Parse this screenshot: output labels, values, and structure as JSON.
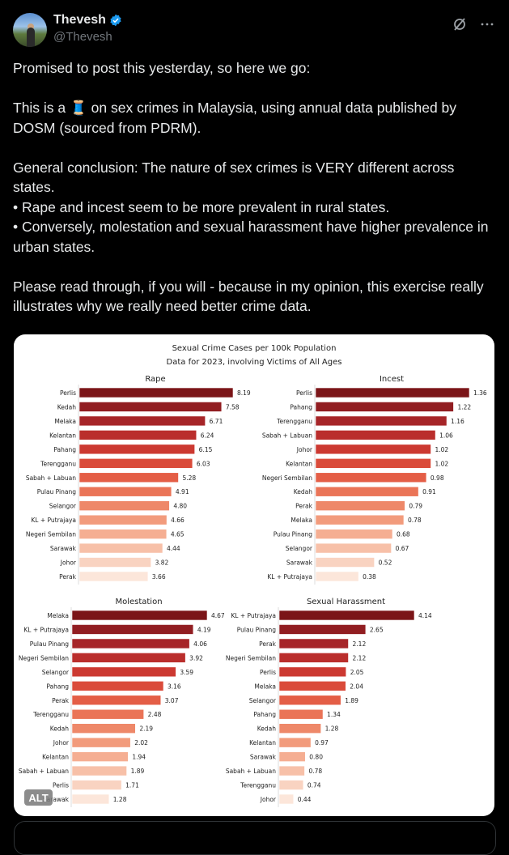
{
  "author": {
    "name": "Thevesh",
    "handle": "@Thevesh",
    "verified": true
  },
  "icons": {
    "verified": "verified-badge-icon",
    "grok": "grok-icon",
    "more": "more-icon"
  },
  "tweet": {
    "paragraphs": [
      "Promised to post this yesterday, so here we go:",
      "This is a 🧵 on sex crimes in Malaysia, using annual data published by DOSM (sourced from PDRM).",
      "General conclusion: The nature of sex crimes is VERY different across states.\n• Rape and incest seem to be more prevalent in rural states.\n• Conversely, molestation and sexual harassment have higher prevalence in urban states.",
      "Please read through, if you will - because in my opinion, this exercise really illustrates why we really need better crime data."
    ]
  },
  "alt_label": "ALT",
  "colors": {
    "palette": [
      "#7b1518",
      "#a32428",
      "#c8342e",
      "#e2553f",
      "#ec7d5e",
      "#f3a182",
      "#f7c3ab",
      "#fce6da"
    ],
    "accent": "#1d9bf0"
  },
  "chart_data": {
    "type": "bar",
    "orientation": "horizontal",
    "title": "Sexual Crime Cases per 100k Population",
    "subtitle": "Data for 2023, involving Victims of All Ages",
    "panels": [
      {
        "title": "Rape",
        "categories": [
          "Perlis",
          "Kedah",
          "Melaka",
          "Kelantan",
          "Pahang",
          "Terengganu",
          "Sabah + Labuan",
          "Pulau Pinang",
          "Selangor",
          "KL + Putrajaya",
          "Negeri Sembilan",
          "Sarawak",
          "Johor",
          "Perak"
        ],
        "values": [
          8.19,
          7.58,
          6.71,
          6.24,
          6.15,
          6.03,
          5.28,
          4.91,
          4.8,
          4.66,
          4.65,
          4.44,
          3.82,
          3.66
        ],
        "labels": [
          "8.19",
          "7.58",
          "6.71",
          "6.24",
          "6.15",
          "6.03",
          "5.28",
          "4.91",
          "4.80",
          "4.66",
          "4.65",
          "4.44",
          "3.82",
          "3.66"
        ]
      },
      {
        "title": "Incest",
        "categories": [
          "Perlis",
          "Pahang",
          "Terengganu",
          "Sabah + Labuan",
          "Johor",
          "Kelantan",
          "Negeri Sembilan",
          "Kedah",
          "Perak",
          "Melaka",
          "Pulau Pinang",
          "Selangor",
          "Sarawak",
          "KL + Putrajaya"
        ],
        "values": [
          1.36,
          1.22,
          1.16,
          1.06,
          1.02,
          1.02,
          0.98,
          0.91,
          0.79,
          0.78,
          0.68,
          0.67,
          0.52,
          0.38
        ],
        "labels": [
          "1.36",
          "1.22",
          "1.16",
          "1.06",
          "1.02",
          "1.02",
          "0.98",
          "0.91",
          "0.79",
          "0.78",
          "0.68",
          "0.67",
          "0.52",
          "0.38"
        ]
      },
      {
        "title": "Molestation",
        "categories": [
          "Melaka",
          "KL + Putrajaya",
          "Pulau Pinang",
          "Negeri Sembilan",
          "Selangor",
          "Pahang",
          "Perak",
          "Terengganu",
          "Kedah",
          "Johor",
          "Kelantan",
          "Sabah + Labuan",
          "Perlis",
          "Sarawak"
        ],
        "values": [
          4.67,
          4.19,
          4.06,
          3.92,
          3.59,
          3.16,
          3.07,
          2.48,
          2.19,
          2.02,
          1.94,
          1.89,
          1.71,
          1.28
        ],
        "labels": [
          "4.67",
          "4.19",
          "4.06",
          "3.92",
          "3.59",
          "3.16",
          "3.07",
          "2.48",
          "2.19",
          "2.02",
          "1.94",
          "1.89",
          "1.71",
          "1.28"
        ]
      },
      {
        "title": "Sexual Harassment",
        "categories": [
          "KL + Putrajaya",
          "Pulau Pinang",
          "Perak",
          "Negeri Sembilan",
          "Perlis",
          "Melaka",
          "Selangor",
          "Pahang",
          "Kedah",
          "Kelantan",
          "Sarawak",
          "Sabah + Labuan",
          "Terengganu",
          "Johor"
        ],
        "values": [
          4.14,
          2.65,
          2.12,
          2.12,
          2.05,
          2.04,
          1.89,
          1.34,
          1.28,
          0.97,
          0.8,
          0.78,
          0.74,
          0.44
        ],
        "labels": [
          "4.14",
          "2.65",
          "2.12",
          "2.12",
          "2.05",
          "2.04",
          "1.89",
          "1.34",
          "1.28",
          "0.97",
          "0.80",
          "0.78",
          "0.74",
          "0.44"
        ]
      }
    ],
    "grid": false,
    "legend": "none"
  }
}
